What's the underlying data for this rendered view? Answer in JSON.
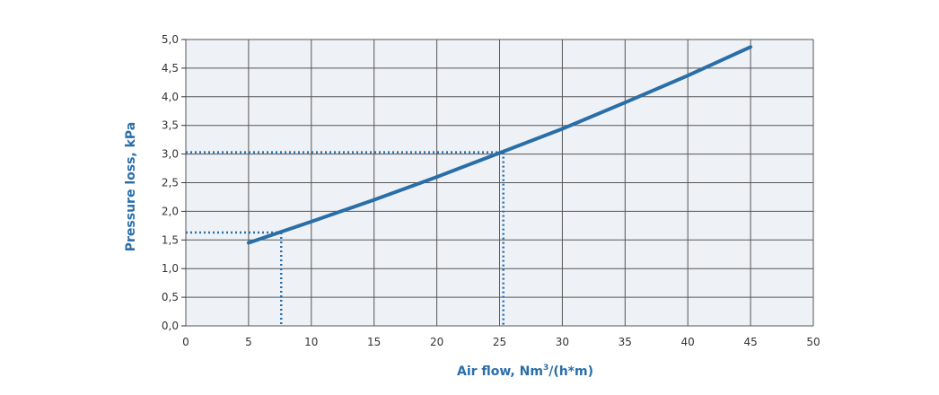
{
  "chart_data": {
    "type": "line",
    "title": "",
    "xlabel_main": "Air flow, Nm",
    "xlabel_sup": "3",
    "xlabel_tail": "/(h*m)",
    "ylabel": "Pressure loss, kPa",
    "xlim": [
      0,
      50
    ],
    "ylim": [
      0,
      5
    ],
    "x_ticks": [
      0,
      5,
      10,
      15,
      20,
      25,
      30,
      35,
      40,
      45,
      50
    ],
    "x_tick_labels": [
      "0",
      "5",
      "10",
      "15",
      "20",
      "25",
      "30",
      "35",
      "40",
      "45",
      "50"
    ],
    "y_ticks": [
      0,
      0.5,
      1,
      1.5,
      2,
      2.5,
      3,
      3.5,
      4,
      4.5,
      5
    ],
    "y_tick_labels": [
      "0,0",
      "0,5",
      "1,0",
      "1,5",
      "2,0",
      "2,5",
      "3,0",
      "3,5",
      "4,0",
      "4,5",
      "5,0"
    ],
    "grid": true,
    "series": [
      {
        "x": [
          5,
          10,
          15,
          20,
          25,
          30,
          35,
          40,
          45
        ],
        "y": [
          1.45,
          1.82,
          2.2,
          2.6,
          3.02,
          3.44,
          3.9,
          4.37,
          4.87
        ]
      }
    ],
    "reference_points": [
      {
        "x": 7.6,
        "y": 1.63
      },
      {
        "x": 25.3,
        "y": 3.03
      }
    ],
    "colors": {
      "line": "#2a6ea8",
      "axis_title": "#2a6ea8",
      "plot_background": "#eef2f6",
      "grid": "#555555"
    }
  }
}
